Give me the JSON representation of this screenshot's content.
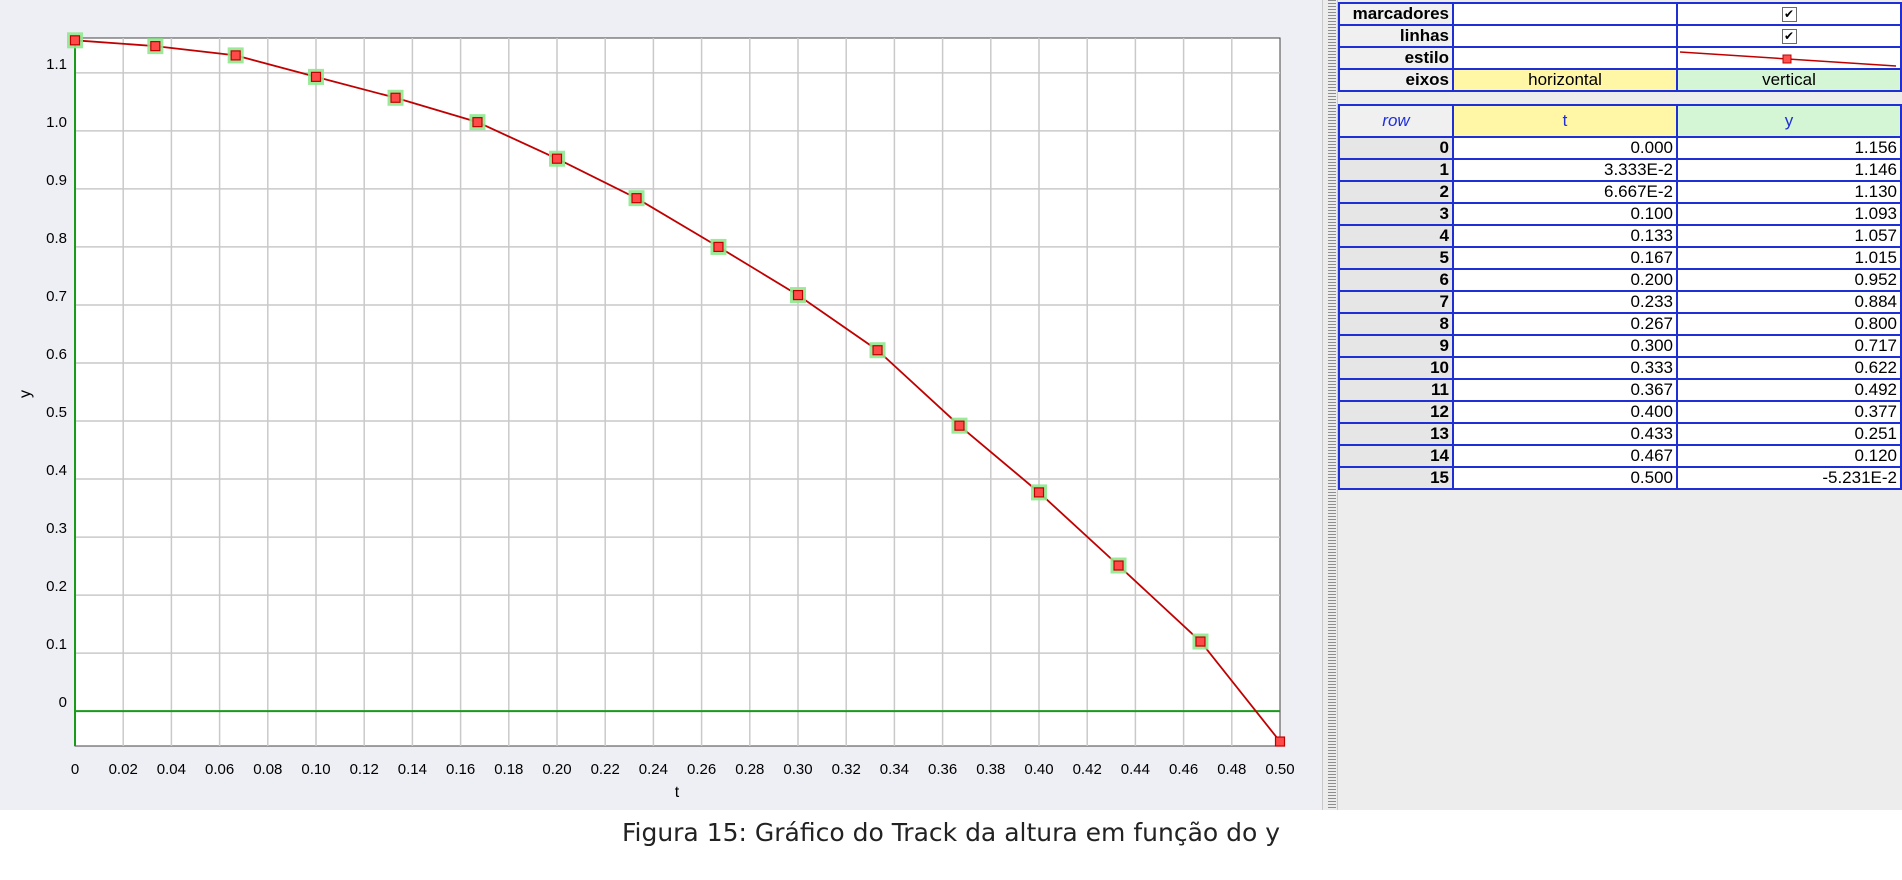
{
  "caption": "Figura 15: Gráfico do Track da altura em função do y",
  "settings": {
    "markers_label": "marcadores",
    "lines_label": "linhas",
    "style_label": "estilo",
    "axes_label": "eixos",
    "markers_checked": true,
    "lines_checked": true,
    "axis_horizontal": "horizontal",
    "axis_vertical": "vertical"
  },
  "table": {
    "headers": {
      "row": "row",
      "t": "t",
      "y": "y"
    },
    "rows": [
      {
        "row": "0",
        "t": "0.000",
        "y": "1.156"
      },
      {
        "row": "1",
        "t": "3.333E-2",
        "y": "1.146"
      },
      {
        "row": "2",
        "t": "6.667E-2",
        "y": "1.130"
      },
      {
        "row": "3",
        "t": "0.100",
        "y": "1.093"
      },
      {
        "row": "4",
        "t": "0.133",
        "y": "1.057"
      },
      {
        "row": "5",
        "t": "0.167",
        "y": "1.015"
      },
      {
        "row": "6",
        "t": "0.200",
        "y": "0.952"
      },
      {
        "row": "7",
        "t": "0.233",
        "y": "0.884"
      },
      {
        "row": "8",
        "t": "0.267",
        "y": "0.800"
      },
      {
        "row": "9",
        "t": "0.300",
        "y": "0.717"
      },
      {
        "row": "10",
        "t": "0.333",
        "y": "0.622"
      },
      {
        "row": "11",
        "t": "0.367",
        "y": "0.492"
      },
      {
        "row": "12",
        "t": "0.400",
        "y": "0.377"
      },
      {
        "row": "13",
        "t": "0.433",
        "y": "0.251"
      },
      {
        "row": "14",
        "t": "0.467",
        "y": "0.120"
      },
      {
        "row": "15",
        "t": "0.500",
        "y": "-5.231E-2"
      }
    ]
  },
  "chart_data": {
    "type": "line",
    "title": "",
    "xlabel": "t",
    "ylabel": "y",
    "xlim": [
      0,
      0.5
    ],
    "ylim": [
      -0.06,
      1.16
    ],
    "grid": true,
    "x_ticks": [
      "0",
      "0.02",
      "0.04",
      "0.06",
      "0.08",
      "0.10",
      "0.12",
      "0.14",
      "0.16",
      "0.18",
      "0.20",
      "0.22",
      "0.24",
      "0.26",
      "0.28",
      "0.30",
      "0.32",
      "0.34",
      "0.36",
      "0.38",
      "0.40",
      "0.42",
      "0.44",
      "0.46",
      "0.48",
      "0.50"
    ],
    "y_ticks": [
      "0",
      "0.1",
      "0.2",
      "0.3",
      "0.4",
      "0.5",
      "0.6",
      "0.7",
      "0.8",
      "0.9",
      "1.0",
      "1.1"
    ],
    "x": [
      0.0,
      0.03333,
      0.06667,
      0.1,
      0.133,
      0.167,
      0.2,
      0.233,
      0.267,
      0.3,
      0.333,
      0.367,
      0.4,
      0.433,
      0.467,
      0.5
    ],
    "y": [
      1.156,
      1.146,
      1.13,
      1.093,
      1.057,
      1.015,
      0.952,
      0.884,
      0.8,
      0.717,
      0.622,
      0.492,
      0.377,
      0.251,
      0.12,
      -0.05231
    ],
    "line_color": "#c00000",
    "marker_color": "#e00000",
    "marker_highlight_color": "#8ee88e",
    "axis_color": "#1a9a1a"
  }
}
